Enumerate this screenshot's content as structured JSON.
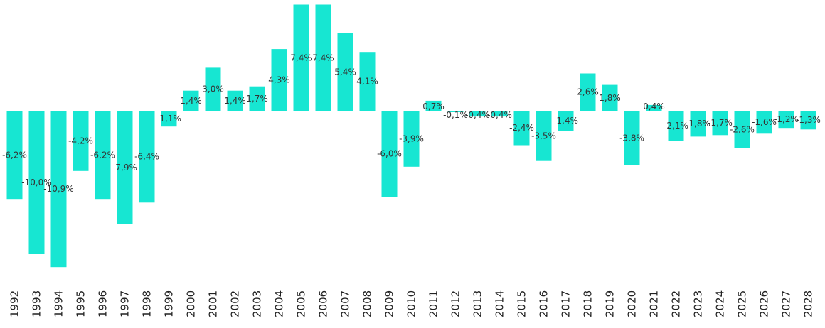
{
  "chart_data": {
    "type": "bar",
    "categories": [
      "1992",
      "1993",
      "1994",
      "1995",
      "1996",
      "1997",
      "1998",
      "1999",
      "2000",
      "2001",
      "2002",
      "2003",
      "2004",
      "2005",
      "2006",
      "2007",
      "2008",
      "2009",
      "2010",
      "2011",
      "2012",
      "2013",
      "2014",
      "2015",
      "2016",
      "2017",
      "2018",
      "2019",
      "2020",
      "2021",
      "2022",
      "2023",
      "2024",
      "2025",
      "2026",
      "2027",
      "2028"
    ],
    "values": [
      -6.2,
      -10.0,
      -10.9,
      -4.2,
      -6.2,
      -7.9,
      -6.4,
      -1.1,
      1.4,
      3.0,
      1.4,
      1.7,
      4.3,
      7.4,
      7.4,
      5.4,
      4.1,
      -6.0,
      -3.9,
      0.7,
      -0.1,
      -0.4,
      -0.4,
      -2.4,
      -3.5,
      -1.4,
      2.6,
      1.8,
      -3.8,
      0.4,
      -2.1,
      -1.8,
      -1.7,
      -2.6,
      -1.6,
      -1.2,
      -1.3
    ],
    "labels": [
      "-6,2%",
      "-10,0%",
      "-10,9%",
      "-4,2%",
      "-6,2%",
      "-7,9%",
      "-6,4%",
      "-1,1%",
      "1,4%",
      "3,0%",
      "1,4%",
      "1,7%",
      "4,3%",
      "7,4%",
      "7,4%",
      "5,4%",
      "4,1%",
      "-6,0%",
      "-3,9%",
      "0,7%",
      "-0,1%",
      "-0,4%",
      "-0,4%",
      "-2,4%",
      "-3,5%",
      "-1,4%",
      "2,6%",
      "1,8%",
      "-3,8%",
      "0,4%",
      "-2,1%",
      "-1,8%",
      "-1,7%",
      "-2,6%",
      "-1,6%",
      "-1,2%",
      "-1,3%"
    ],
    "title": "",
    "xlabel": "",
    "ylabel": "",
    "ylim": [
      -10.9,
      7.4
    ],
    "grid": false,
    "bar_color": "#17E6D2"
  }
}
